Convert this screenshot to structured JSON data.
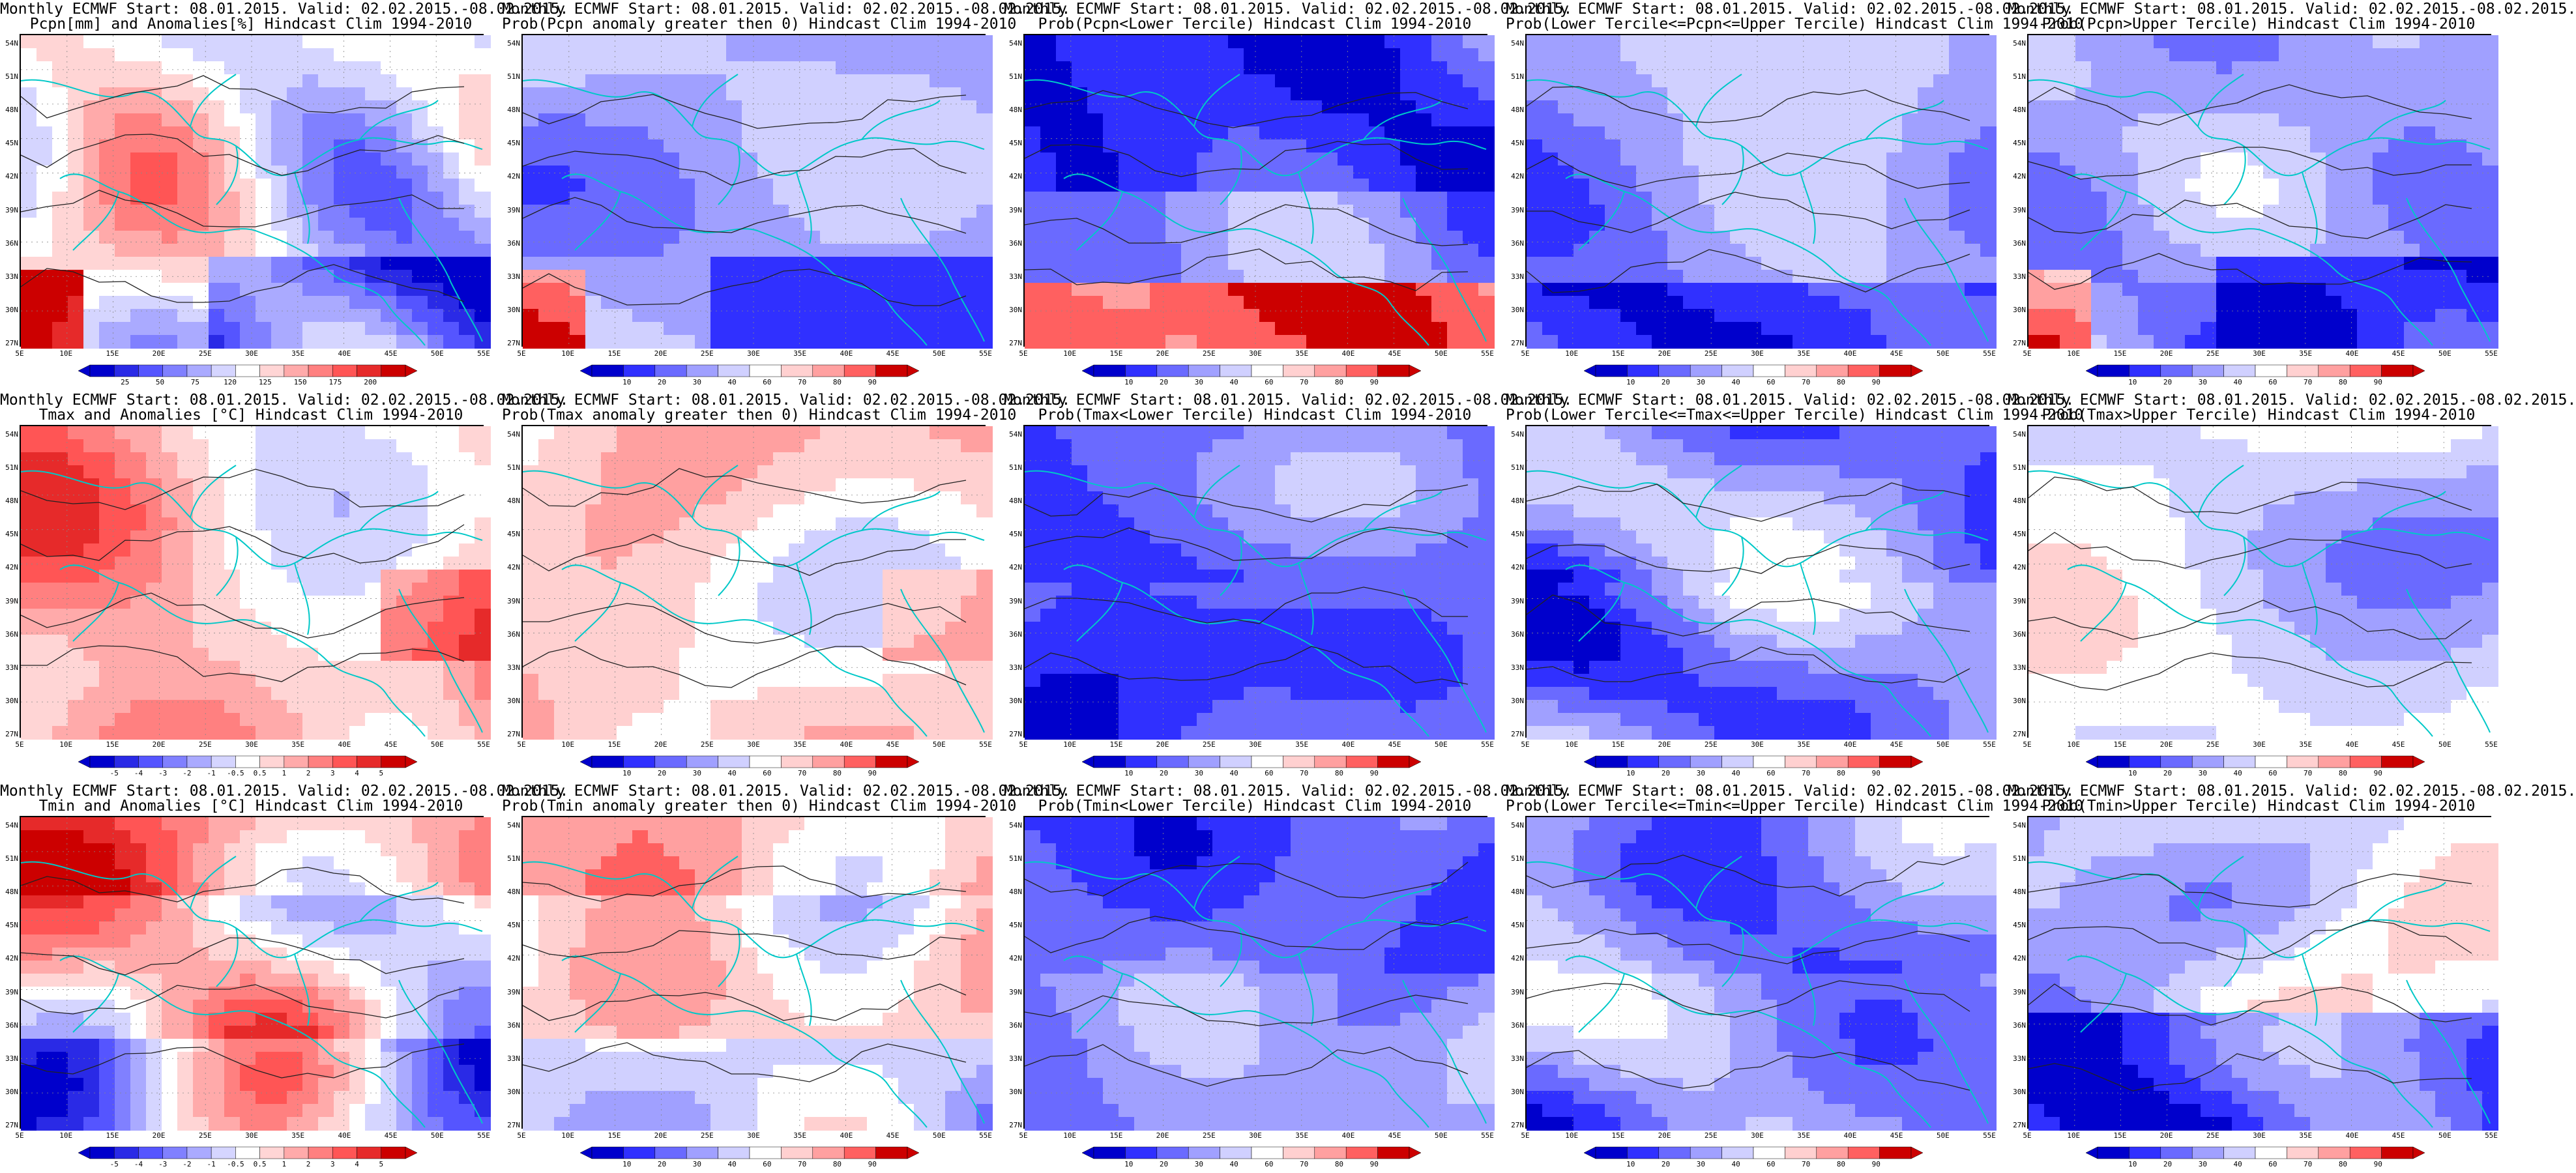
{
  "lat_labels": [
    "54N",
    "51N",
    "48N",
    "45N",
    "42N",
    "39N",
    "36N",
    "33N",
    "30N",
    "27N"
  ],
  "lon_labels": [
    "5E",
    "10E",
    "15E",
    "20E",
    "25E",
    "30E",
    "35E",
    "40E",
    "45E",
    "50E",
    "55E"
  ],
  "palettes": {
    "diverging": [
      "#0000cc",
      "#2a2ae6",
      "#5555ff",
      "#8080ff",
      "#aaaaff",
      "#d5d5ff",
      "#ffffff",
      "#ffd5d5",
      "#ffaaaa",
      "#ff8080",
      "#ff5555",
      "#e62a2a",
      "#cc0000"
    ],
    "prob": [
      "#0000cc",
      "#3030ff",
      "#6a6aff",
      "#a0a0ff",
      "#d0d0ff",
      "#ffffff",
      "#ffd0d0",
      "#ffa0a0",
      "#ff6060",
      "#cc0000"
    ]
  },
  "scales": {
    "pcpn_anom": [
      "25",
      "50",
      "75",
      "120",
      "125",
      "150",
      "175",
      "200"
    ],
    "t_anom": [
      "-5",
      "-4",
      "-3",
      "-2",
      "-1",
      "-0.5",
      "0.5",
      "1",
      "2",
      "3",
      "4",
      "5"
    ],
    "prob": [
      "10",
      "20",
      "30",
      "40",
      "60",
      "70",
      "80",
      "90"
    ]
  },
  "panels": [
    {
      "line1": "Monthly ECMWF Start: 08.01.2015. Valid: 02.02.2015.-08.02.2015.",
      "line2": "Pcpn[mm] and Anomalies[%]",
      "line2b": "Hindcast Clim 1994-2010",
      "scale": "pcpn_anom",
      "bias": 0.0,
      "seed": 1,
      "mode": "pcpn"
    },
    {
      "line1": "Monthly ECMWF Start: 08.01.2015. Valid: 02.02.2015.-08.02.2015.",
      "line2": "Prob(Pcpn anomaly greater then 0)",
      "line2b": "Hindcast Clim 1994-2010",
      "scale": "prob",
      "bias": -0.25,
      "seed": 2,
      "mode": "pcpn"
    },
    {
      "line1": "Monthly ECMWF Start: 08.01.2015. Valid: 02.02.2015.-08.02.2015.",
      "line2": "Prob(Pcpn<Lower Tercile)",
      "line2b": "Hindcast Clim 1994-2010",
      "scale": "prob",
      "bias": -0.45,
      "seed": 3,
      "mode": "pcpnlow"
    },
    {
      "line1": "Monthly ECMWF Start: 08.01.2015. Valid: 02.02.2015.-08.02.2015.",
      "line2": "Prob(Lower Tercile<=Pcpn<=Upper Tercile)",
      "line2b": "Hindcast Clim 1994-2010",
      "scale": "prob",
      "bias": -0.35,
      "seed": 4,
      "mode": "mid"
    },
    {
      "line1": "Monthly ECMWF Start: 08.01.2015. Valid: 02.02.2015.-08.02.2015.",
      "line2": "Prob(Pcpn>Upper Tercile)",
      "line2b": "Hindcast Clim 1994-2010",
      "scale": "prob",
      "bias": -0.3,
      "seed": 5,
      "mode": "pcpn"
    },
    {
      "line1": "Monthly ECMWF Start: 08.01.2015. Valid: 02.02.2015.-08.02.2015.",
      "line2": "Tmax and Anomalies [°C]",
      "line2b": "Hindcast Clim 1994-2010",
      "scale": "t_anom",
      "bias": 0.3,
      "seed": 6,
      "mode": "warm"
    },
    {
      "line1": "Monthly ECMWF Start: 08.01.2015. Valid: 02.02.2015.-08.02.2015.",
      "line2": "Prob(Tmax anomaly greater then 0)",
      "line2b": "Hindcast Clim 1994-2010",
      "scale": "prob",
      "bias": 0.35,
      "seed": 7,
      "mode": "warm"
    },
    {
      "line1": "Monthly ECMWF Start: 08.01.2015. Valid: 02.02.2015.-08.02.2015.",
      "line2": "Prob(Tmax<Lower Tercile)",
      "line2b": "Hindcast Clim 1994-2010",
      "scale": "prob",
      "bias": -0.45,
      "seed": 8,
      "mode": "cold"
    },
    {
      "line1": "Monthly ECMWF Start: 08.01.2015. Valid: 02.02.2015.-08.02.2015.",
      "line2": "Prob(Lower Tercile<=Tmax<=Upper Tercile)",
      "line2b": "Hindcast Clim 1994-2010",
      "scale": "prob",
      "bias": -0.35,
      "seed": 9,
      "mode": "cold"
    },
    {
      "line1": "Monthly ECMWF Start: 08.01.2015. Valid: 02.02.2015.-08.02.2015.",
      "line2": "Prob(Tmax>Upper Tercile)",
      "line2b": "Hindcast Clim 1994-2010",
      "scale": "prob",
      "bias": -0.05,
      "seed": 10,
      "mode": "mixed"
    },
    {
      "line1": "Monthly ECMWF Start: 08.01.2015. Valid: 02.02.2015.-08.02.2015.",
      "line2": "Tmin and Anomalies [°C]",
      "line2b": "Hindcast Clim 1994-2010",
      "scale": "t_anom",
      "bias": 0.15,
      "seed": 11,
      "mode": "warmnorth"
    },
    {
      "line1": "Monthly ECMWF Start: 08.01.2015. Valid: 02.02.2015.-08.02.2015.",
      "line2": "Prob(Tmin anomaly greater then 0)",
      "line2b": "Hindcast Clim 1994-2010",
      "scale": "prob",
      "bias": 0.25,
      "seed": 12,
      "mode": "warmnorth"
    },
    {
      "line1": "Monthly ECMWF Start: 08.01.2015. Valid: 02.02.2015.-08.02.2015.",
      "line2": "Prob(Tmin<Lower Tercile)",
      "line2b": "Hindcast Clim 1994-2010",
      "scale": "prob",
      "bias": -0.45,
      "seed": 13,
      "mode": "cold"
    },
    {
      "line1": "Monthly ECMWF Start: 08.01.2015. Valid: 02.02.2015.-08.02.2015.",
      "line2": "Prob(Lower Tercile<=Tmin<=Upper Tercile)",
      "line2b": "Hindcast Clim 1994-2010",
      "scale": "prob",
      "bias": -0.3,
      "seed": 14,
      "mode": "cold"
    },
    {
      "line1": "Monthly ECMWF Start: 08.01.2015. Valid: 02.02.2015.-08.02.2015.",
      "line2": "Prob(Tmin>Upper Tercile)",
      "line2b": "Hindcast Clim 1994-2010",
      "scale": "prob",
      "bias": -0.15,
      "seed": 15,
      "mode": "coldsouth"
    }
  ]
}
